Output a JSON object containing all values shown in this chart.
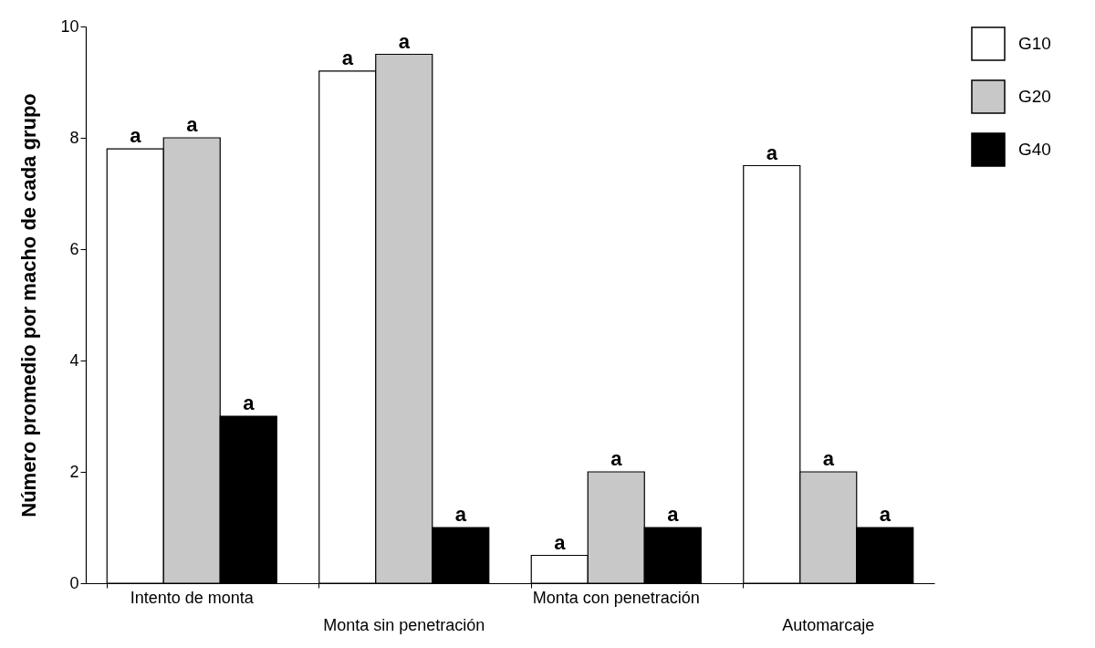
{
  "chart_data": {
    "type": "bar",
    "ylabel": "Número promedio por macho de cada grupo",
    "categories": [
      "Intento de monta",
      "Monta sin penetración",
      "Monta con penetración",
      "Automarcaje"
    ],
    "series": [
      {
        "name": "G10",
        "color": "#ffffff",
        "values": [
          7.8,
          9.2,
          0.5,
          7.5
        ],
        "value_labels": [
          "a",
          "a",
          "a",
          "a"
        ]
      },
      {
        "name": "G20",
        "color": "#c8c8c8",
        "values": [
          8.0,
          9.5,
          2.0,
          2.0
        ],
        "value_labels": [
          "a",
          "a",
          "a",
          "a"
        ]
      },
      {
        "name": "G40",
        "color": "#000000",
        "values": [
          3.0,
          1.0,
          1.0,
          1.0
        ],
        "value_labels": [
          "a",
          "a",
          "a",
          "a"
        ]
      }
    ],
    "ylim": [
      0,
      10
    ],
    "yticks": [
      0,
      2,
      4,
      6,
      8,
      10
    ],
    "grid": false,
    "legend": "right"
  }
}
